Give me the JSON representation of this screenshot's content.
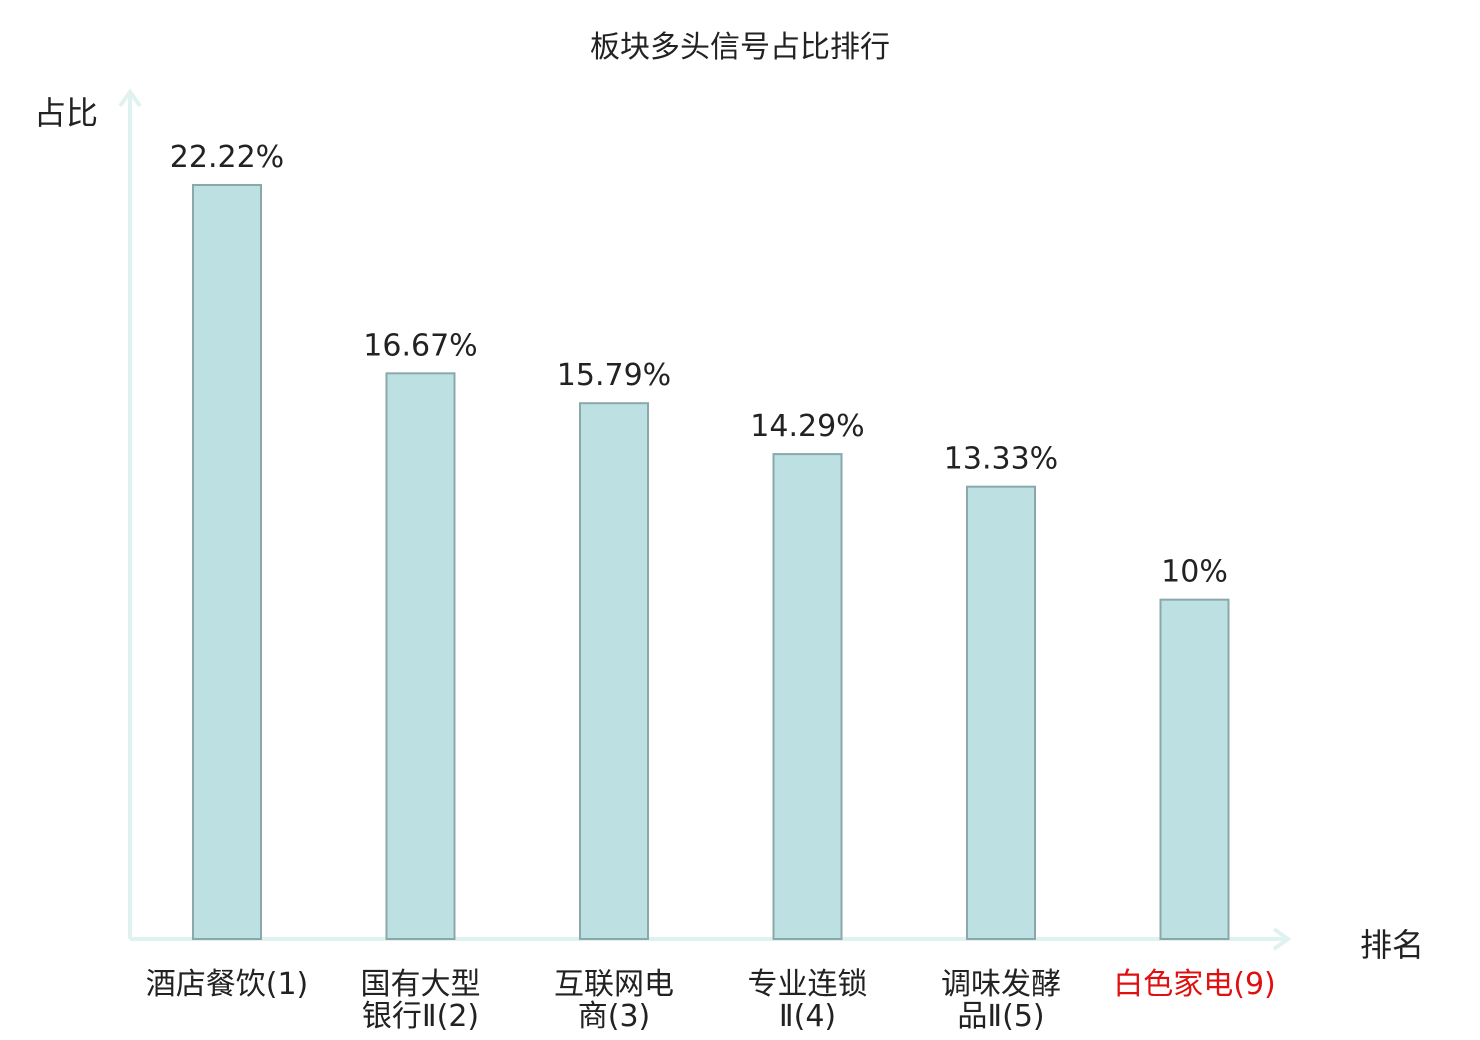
{
  "chart_data": {
    "type": "bar",
    "title": "板块多头信号占比排行",
    "xlabel": "排名",
    "ylabel": "占比",
    "categories": [
      [
        "酒店餐饮(1)"
      ],
      [
        "国有大型",
        "银行Ⅱ(2)"
      ],
      [
        "互联网电",
        "商(3)"
      ],
      [
        "专业连锁",
        "Ⅱ(4)"
      ],
      [
        "调味发酵",
        "品Ⅱ(5)"
      ],
      [
        "白色家电(9)"
      ]
    ],
    "values": [
      22.22,
      16.67,
      15.79,
      14.29,
      13.33,
      10
    ],
    "value_labels": [
      "22.22%",
      "16.67%",
      "15.79%",
      "14.29%",
      "13.33%",
      "10%"
    ],
    "highlight_index": 5,
    "ylim": [
      0,
      22.22
    ],
    "grid": false,
    "colors": {
      "bar_fill": "#bde0e3",
      "bar_stroke": "#8aa8aa",
      "axis": "#dff2ef",
      "text": "#222222",
      "highlight_text": "#e01010"
    }
  }
}
